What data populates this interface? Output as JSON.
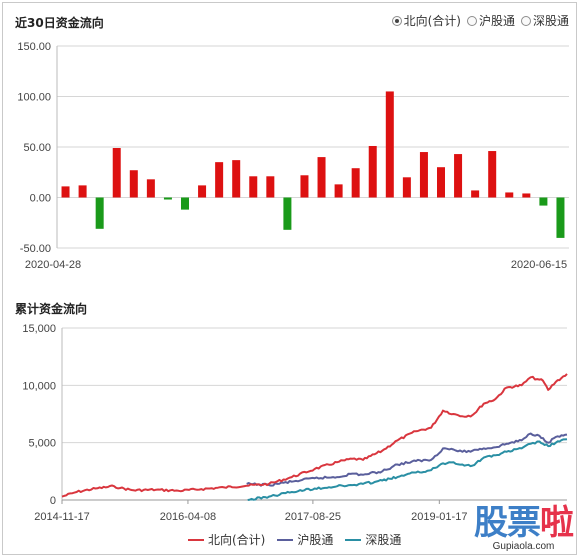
{
  "top_title": "近30日资金流向",
  "bottom_title": "累计资金流向",
  "radio_options": [
    {
      "label": "北向(合计)",
      "selected": true
    },
    {
      "label": "沪股通",
      "selected": false
    },
    {
      "label": "深股通",
      "selected": false
    }
  ],
  "colors": {
    "positive": "#dd1111",
    "negative": "#1a9a1a",
    "north": "#d9363e",
    "sh": "#5a5f9c",
    "sz": "#2a8fa4"
  },
  "chart_data": [
    {
      "type": "bar",
      "title": "近30日资金流向",
      "x_start_label": "2020-04-28",
      "x_end_label": "2020-06-15",
      "ylim": [
        -50,
        150
      ],
      "yticks": [
        "150.00",
        "100.00",
        "50.00",
        "0.00",
        "-50.00"
      ],
      "values": [
        11,
        12,
        -31,
        49,
        27,
        18,
        -2,
        -12,
        12,
        35,
        37,
        21,
        21,
        -32,
        22,
        40,
        13,
        29,
        51,
        105,
        20,
        45,
        30,
        43,
        7,
        46,
        5,
        4,
        -8,
        -40
      ]
    },
    {
      "type": "line",
      "title": "累计资金流向",
      "ylim": [
        0,
        15000
      ],
      "yticks": [
        "15,000",
        "10,000",
        "5,000",
        "0"
      ],
      "xticks": [
        "2014-11-17",
        "2016-04-08",
        "2017-08-25",
        "2019-01-17"
      ],
      "x_range": [
        "2014-11-17",
        "2020-06-15"
      ],
      "series": [
        {
          "name": "北向(合计)",
          "x": [
            "2014-11-17",
            "2015-01-15",
            "2015-04-01",
            "2015-06-15",
            "2015-07-10",
            "2015-09-01",
            "2015-12-01",
            "2016-03-01",
            "2016-06-01",
            "2016-09-01",
            "2016-12-01",
            "2017-03-01",
            "2017-06-01",
            "2017-09-01",
            "2017-12-01",
            "2018-01-31",
            "2018-03-15",
            "2018-06-01",
            "2018-08-01",
            "2018-10-15",
            "2018-12-15",
            "2019-02-01",
            "2019-03-15",
            "2019-04-20",
            "2019-05-31",
            "2019-07-15",
            "2019-08-31",
            "2019-10-15",
            "2019-12-15",
            "2020-01-20",
            "2020-02-25",
            "2020-03-10",
            "2020-03-31",
            "2020-05-01",
            "2020-06-15"
          ],
          "y": [
            300,
            700,
            1000,
            1200,
            1050,
            850,
            900,
            800,
            950,
            1100,
            1250,
            1400,
            2000,
            2700,
            3300,
            3600,
            3500,
            4300,
            5200,
            6000,
            6300,
            7800,
            7500,
            7300,
            7400,
            8400,
            8800,
            9800,
            10000,
            10700,
            10500,
            10400,
            9600,
            10300,
            11000
          ]
        },
        {
          "name": "沪股通",
          "x": [
            "2016-12-01",
            "2017-03-01",
            "2017-06-01",
            "2017-09-01",
            "2017-12-01",
            "2018-01-31",
            "2018-03-15",
            "2018-06-01",
            "2018-08-01",
            "2018-10-15",
            "2018-12-15",
            "2019-02-01",
            "2019-03-15",
            "2019-04-20",
            "2019-05-31",
            "2019-07-15",
            "2019-08-31",
            "2019-10-15",
            "2019-12-15",
            "2020-01-20",
            "2020-02-25",
            "2020-03-10",
            "2020-03-31",
            "2020-05-01",
            "2020-06-15"
          ],
          "y": [
            1400,
            1300,
            1600,
            1900,
            2000,
            2300,
            2200,
            2500,
            3100,
            3400,
            3500,
            4500,
            4400,
            4200,
            4300,
            4500,
            4600,
            4900,
            5200,
            5800,
            5600,
            5400,
            5000,
            5500,
            5700
          ]
        },
        {
          "name": "深股通",
          "x": [
            "2016-12-05",
            "2017-03-01",
            "2017-06-01",
            "2017-09-01",
            "2017-12-01",
            "2018-01-31",
            "2018-03-15",
            "2018-06-01",
            "2018-08-01",
            "2018-10-15",
            "2018-12-15",
            "2019-02-01",
            "2019-03-15",
            "2019-04-20",
            "2019-05-31",
            "2019-07-15",
            "2019-08-31",
            "2019-10-15",
            "2019-12-15",
            "2020-01-20",
            "2020-02-25",
            "2020-03-10",
            "2020-03-31",
            "2020-05-01",
            "2020-06-15"
          ],
          "y": [
            0,
            300,
            700,
            1000,
            1200,
            1300,
            1400,
            1700,
            2000,
            2400,
            2600,
            3200,
            3300,
            3100,
            3000,
            3700,
            3900,
            4200,
            4500,
            4900,
            5100,
            4900,
            4700,
            5000,
            5300
          ]
        }
      ]
    }
  ],
  "watermark": {
    "logo_main": "股票",
    "logo_accent": "啦",
    "url": "Gupiaola.com"
  }
}
